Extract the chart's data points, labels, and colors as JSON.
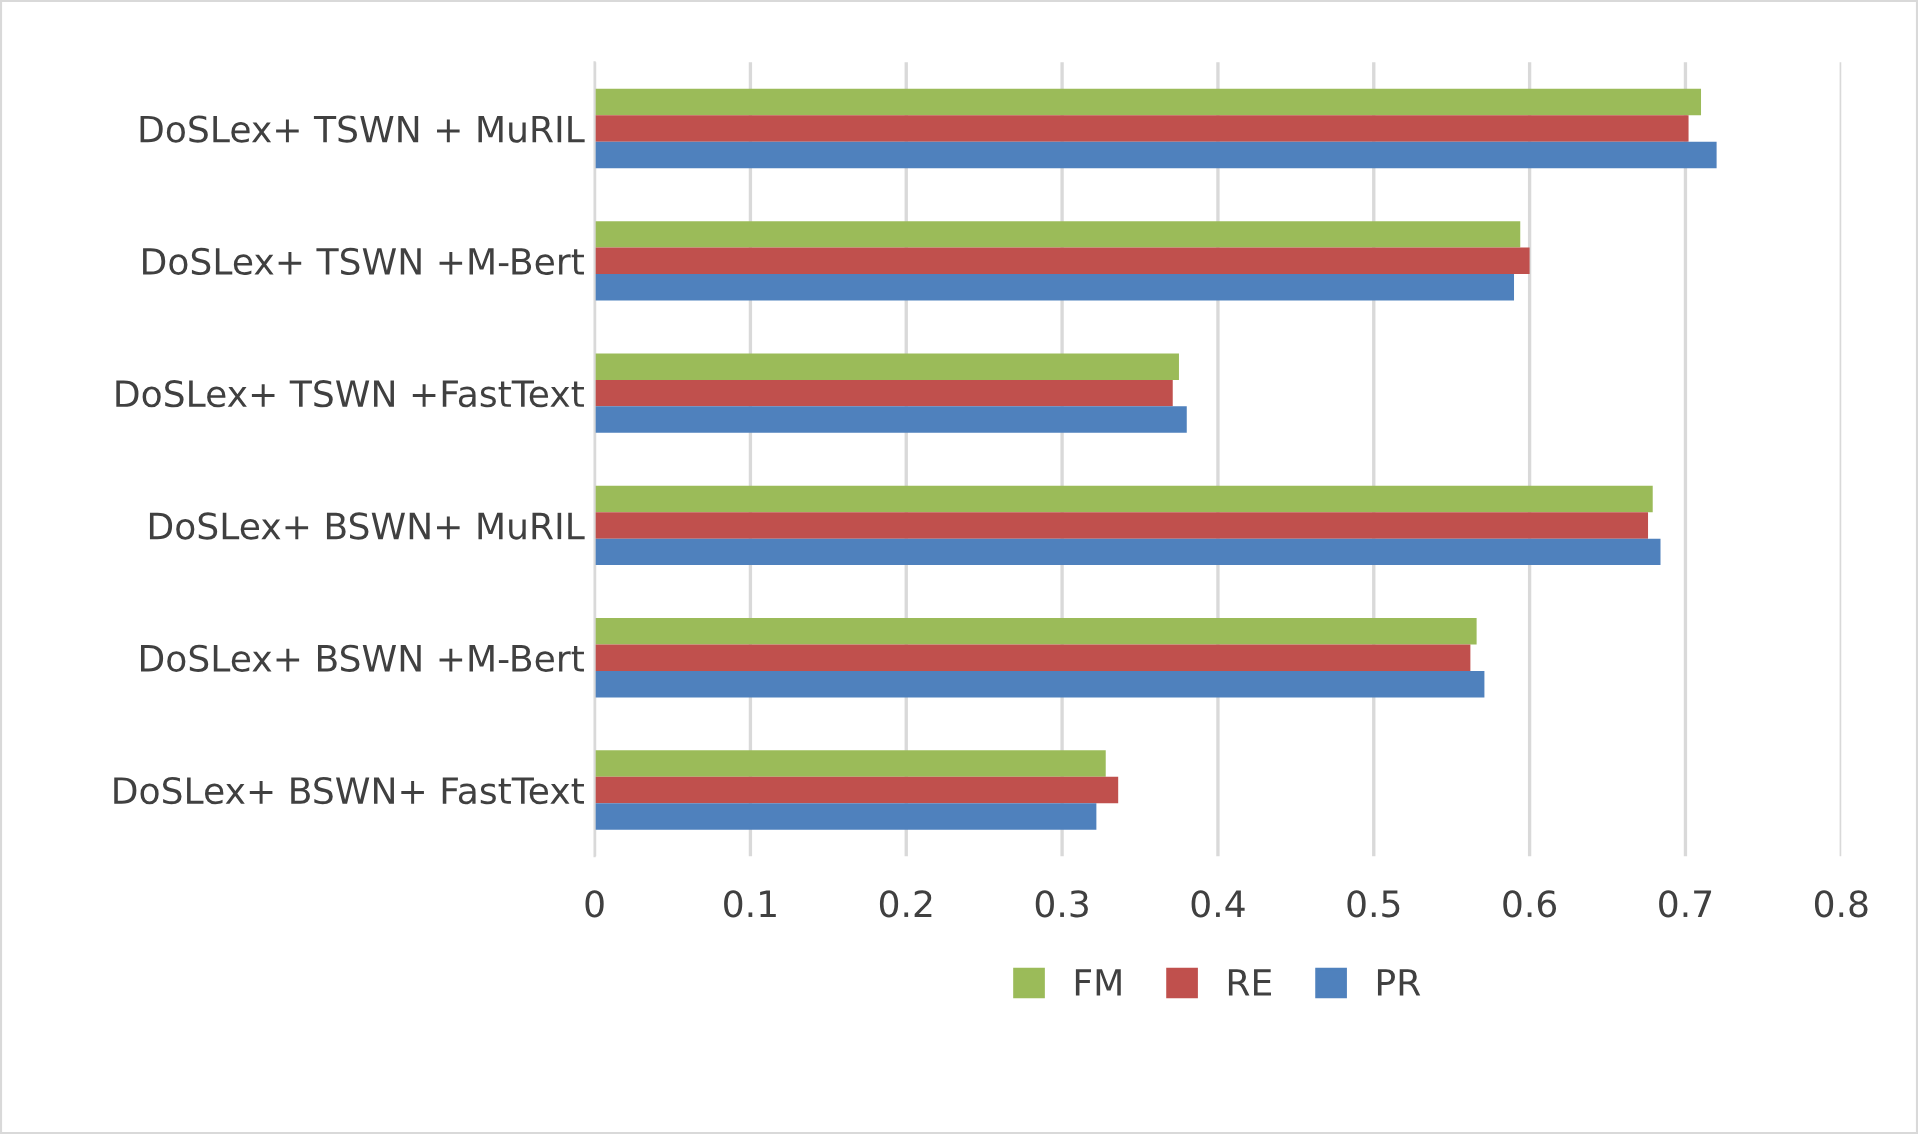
{
  "chart_data": {
    "type": "bar",
    "orientation": "horizontal",
    "categories": [
      "DoSLex+ TSWN + MuRIL",
      "DoSLex+ TSWN +M-Bert",
      "DoSLex+ TSWN +FastText",
      "DoSLex+ BSWN+ MuRIL",
      "DoSLex+ BSWN +M-Bert",
      "DoSLex+ BSWN+ FastText"
    ],
    "series": [
      {
        "name": "FM",
        "color": "#9bbb59",
        "values": [
          0.71,
          0.594,
          0.375,
          0.679,
          0.566,
          0.328
        ]
      },
      {
        "name": "RE",
        "color": "#c0504d",
        "values": [
          0.702,
          0.6,
          0.371,
          0.676,
          0.562,
          0.336
        ]
      },
      {
        "name": "PR",
        "color": "#4f81bd",
        "values": [
          0.72,
          0.59,
          0.38,
          0.684,
          0.571,
          0.322
        ]
      }
    ],
    "xlim": [
      0,
      0.8
    ],
    "xticks": [
      0,
      0.1,
      0.2,
      0.3,
      0.4,
      0.5,
      0.6,
      0.7,
      0.8
    ],
    "grid": "x",
    "legend": "bottom"
  }
}
